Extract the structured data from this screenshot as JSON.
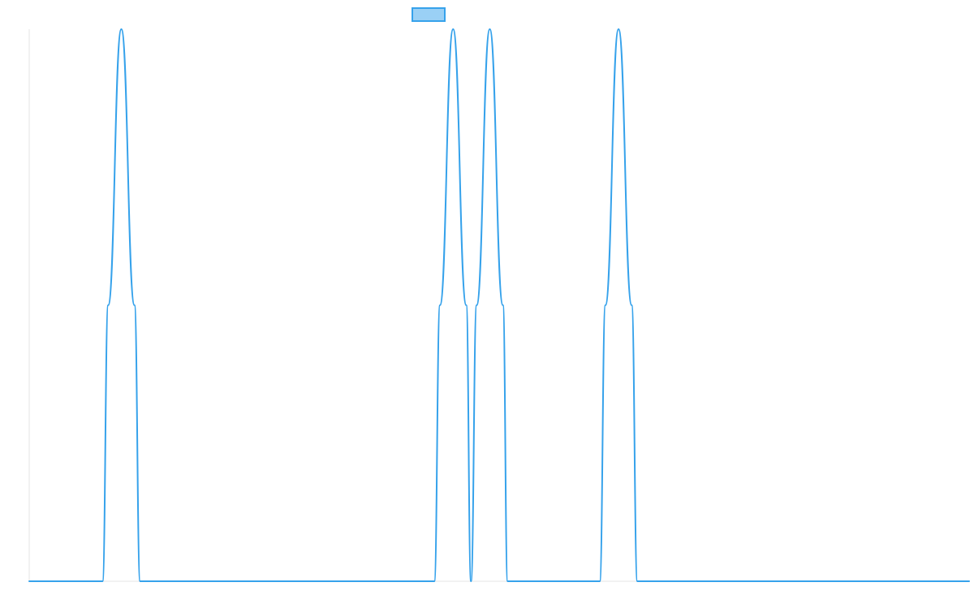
{
  "chart_data": {
    "type": "line",
    "title": "",
    "xlabel": "",
    "ylabel": "",
    "grid": false,
    "legend_position": "top-center",
    "xlim": [
      0,
      1000
    ],
    "ylim": [
      0,
      1
    ],
    "series": [
      {
        "name": "",
        "color": "#36a2eb",
        "fill_color": "#9ad0f5",
        "points": [
          [
            0,
            0
          ],
          [
            78,
            0
          ],
          [
            84,
            0.5
          ],
          [
            98,
            1
          ],
          [
            112,
            0.5
          ],
          [
            118,
            0
          ],
          [
            431,
            0
          ],
          [
            437,
            0.5
          ],
          [
            451,
            1
          ],
          [
            465,
            0.5
          ],
          [
            470,
            0
          ],
          [
            476,
            0.5
          ],
          [
            490,
            1
          ],
          [
            504,
            0.5
          ],
          [
            509,
            0
          ],
          [
            607,
            0
          ],
          [
            613,
            0.5
          ],
          [
            627,
            1
          ],
          [
            641,
            0.5
          ],
          [
            647,
            0
          ],
          [
            1000,
            0
          ]
        ]
      }
    ]
  }
}
